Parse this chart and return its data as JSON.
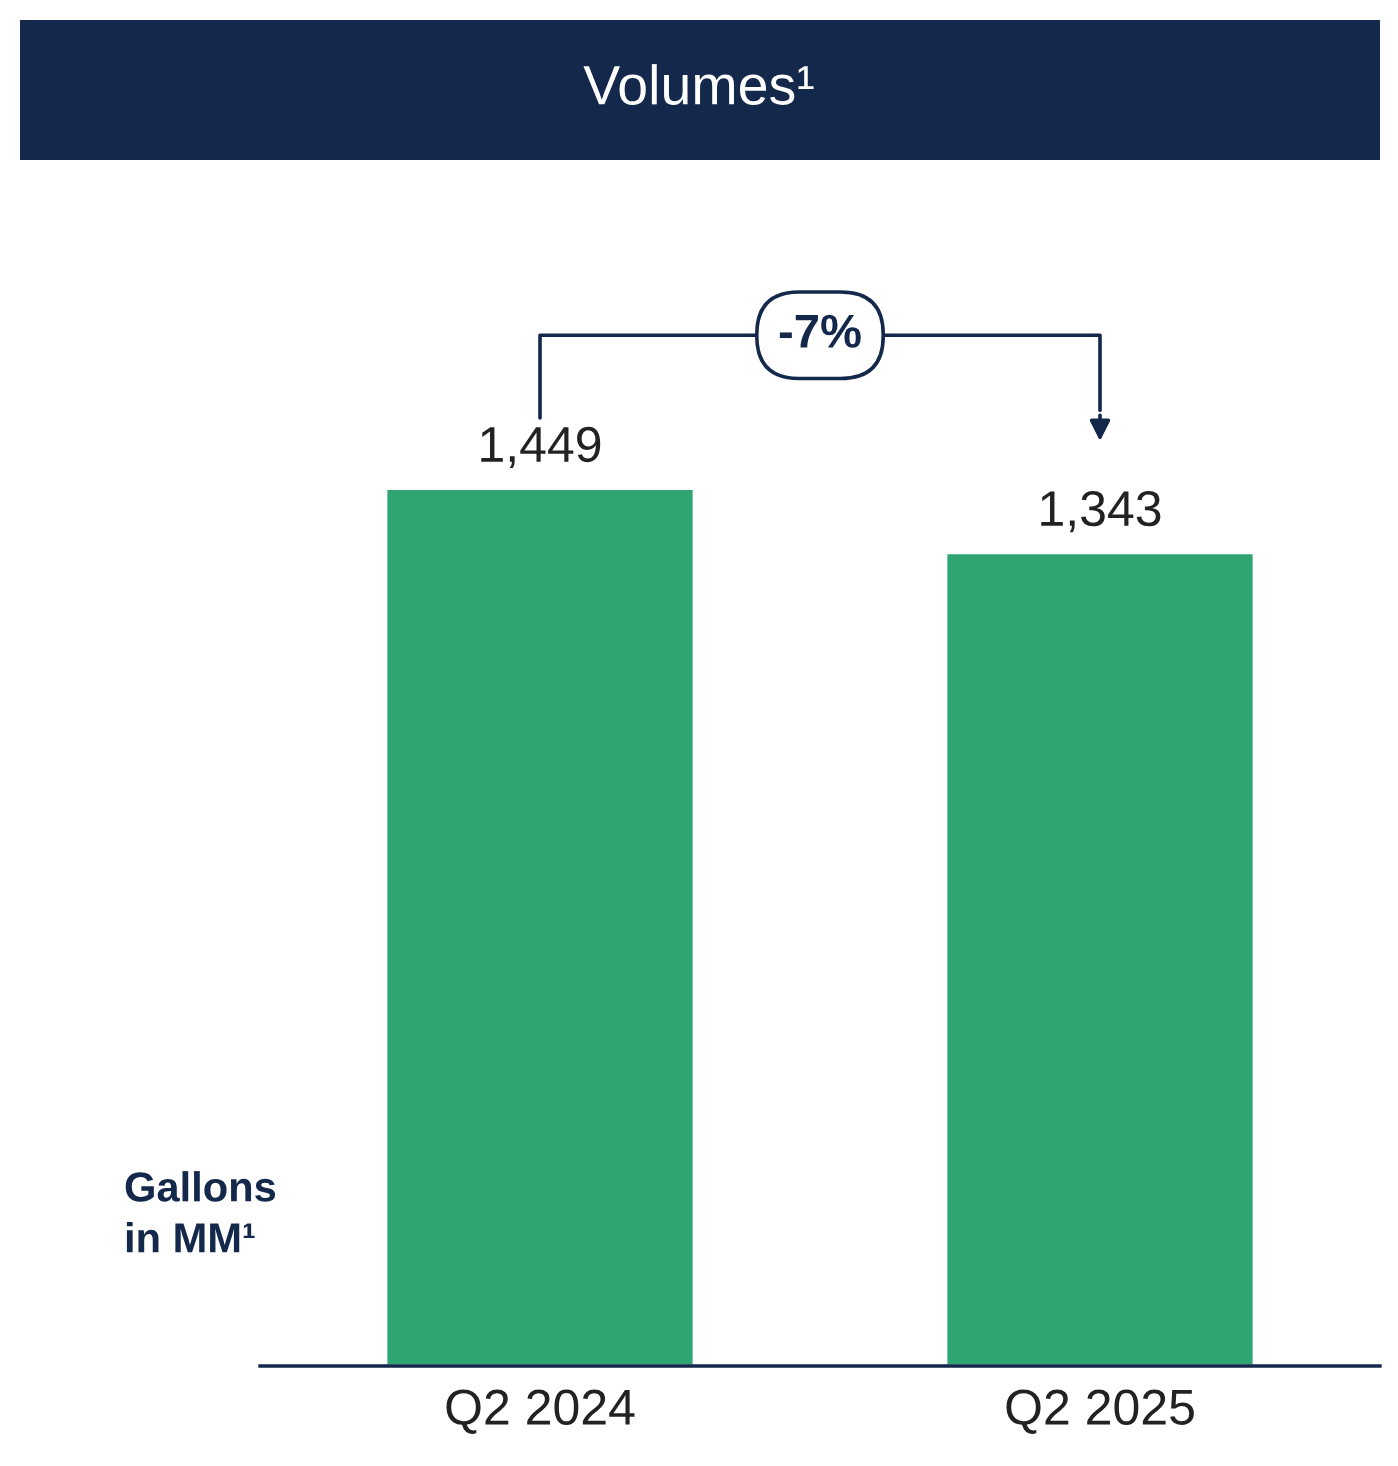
{
  "chart_data": {
    "type": "bar",
    "title": "Volumes¹",
    "ylabel": "Gallons\nin MM¹",
    "categories": [
      "Q2 2024",
      "Q2 2025"
    ],
    "values": [
      1449,
      1343
    ],
    "value_labels": [
      "1,449",
      "1,343"
    ],
    "color": "#2fa572",
    "tick_labels": "x",
    "grid": false,
    "legend": false,
    "annotations": [
      "-7%"
    ]
  }
}
